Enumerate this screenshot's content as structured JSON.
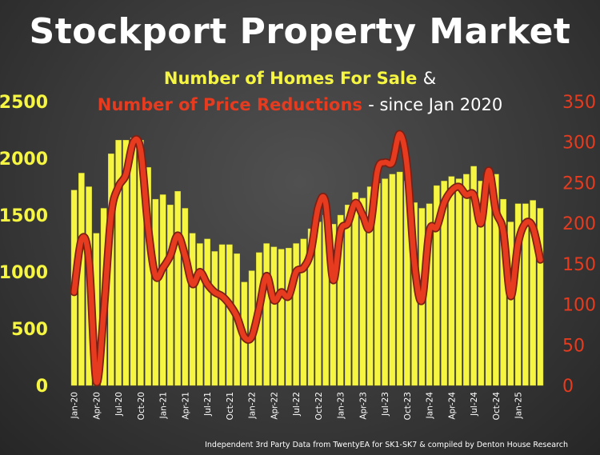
{
  "title": "Stockport Property Market",
  "subtitle_line1": "Number of Homes For Sale",
  "subtitle_amp": "&",
  "subtitle_line2": "Number of Price Reductions",
  "subtitle_suffix": "- since Jan 2020",
  "footer": "Independent 3rd Party Data from TwentyEA for SK1-SK7 & compiled by Denton House Research",
  "colors": {
    "background": "#3a3a3a",
    "bars": "#f5f542",
    "line": "#e63b1f",
    "line_outline": "#7a2015",
    "title": "#ffffff"
  },
  "chart_data": {
    "type": "bar",
    "categories": [
      "Jan-20",
      "Feb-20",
      "Mar-20",
      "Apr-20",
      "May-20",
      "Jun-20",
      "Jul-20",
      "Aug-20",
      "Sep-20",
      "Oct-20",
      "Nov-20",
      "Dec-20",
      "Jan-21",
      "Feb-21",
      "Mar-21",
      "Apr-21",
      "May-21",
      "Jun-21",
      "Jul-21",
      "Aug-21",
      "Sep-21",
      "Oct-21",
      "Nov-21",
      "Dec-21",
      "Jan-22",
      "Feb-22",
      "Mar-22",
      "Apr-22",
      "May-22",
      "Jun-22",
      "Jul-22",
      "Aug-22",
      "Sep-22",
      "Oct-22",
      "Nov-22",
      "Dec-22",
      "Jan-23",
      "Feb-23",
      "Mar-23",
      "Apr-23",
      "May-23",
      "Jun-23",
      "Jul-23",
      "Aug-23",
      "Sep-23",
      "Oct-23",
      "Nov-23",
      "Dec-23",
      "Jan-24",
      "Feb-24",
      "Mar-24",
      "Apr-24",
      "May-24",
      "Jun-24",
      "Jul-24",
      "Aug-24",
      "Sep-24",
      "Oct-24",
      "Nov-24",
      "Dec-24",
      "Jan-25",
      "Feb-25",
      "Mar-25",
      "Apr-25"
    ],
    "x_tick_labels": [
      "Jan-20",
      "Apr-20",
      "Jul-20",
      "Oct-20",
      "Jan-21",
      "Apr-21",
      "Jul-21",
      "Oct-21",
      "Jan-22",
      "Apr-22",
      "Jul-22",
      "Oct-22",
      "Jan-23",
      "Apr-23",
      "Jul-23",
      "Oct-23",
      "Jan-24",
      "Apr-24",
      "Jul-24",
      "Oct-24",
      "Jan-25"
    ],
    "left_axis": {
      "ylim": [
        0,
        2500
      ],
      "ticks": [
        0,
        500,
        1000,
        1500,
        2000,
        2500
      ],
      "color": "#f5f542"
    },
    "right_axis": {
      "ylim": [
        0,
        350
      ],
      "ticks": [
        0,
        50,
        100,
        150,
        200,
        250,
        300,
        350
      ],
      "color": "#e63b1f"
    },
    "grid": false,
    "series": [
      {
        "type": "bar",
        "axis": "left",
        "values": [
          1720,
          1870,
          1750,
          1340,
          1560,
          2040,
          2160,
          2160,
          2180,
          2160,
          1920,
          1640,
          1680,
          1590,
          1710,
          1560,
          1340,
          1250,
          1290,
          1180,
          1240,
          1240,
          1160,
          910,
          1010,
          1170,
          1250,
          1220,
          1200,
          1210,
          1250,
          1290,
          1380,
          1440,
          1500,
          1420,
          1500,
          1590,
          1700,
          1650,
          1750,
          1780,
          1820,
          1860,
          1880,
          1800,
          1610,
          1560,
          1600,
          1760,
          1800,
          1840,
          1820,
          1860,
          1930,
          1800,
          1720,
          1860,
          1640,
          1440,
          1600,
          1600,
          1630,
          1560
        ]
      },
      {
        "type": "line",
        "axis": "right",
        "values": [
          115,
          180,
          155,
          5,
          90,
          210,
          245,
          260,
          300,
          290,
          195,
          135,
          145,
          160,
          185,
          160,
          125,
          140,
          125,
          115,
          110,
          100,
          85,
          60,
          60,
          95,
          135,
          105,
          115,
          110,
          140,
          145,
          165,
          220,
          225,
          130,
          190,
          200,
          225,
          210,
          195,
          265,
          275,
          275,
          310,
          270,
          150,
          105,
          190,
          195,
          225,
          240,
          245,
          235,
          235,
          200,
          265,
          215,
          190,
          110,
          175,
          200,
          195,
          155
        ]
      }
    ]
  }
}
